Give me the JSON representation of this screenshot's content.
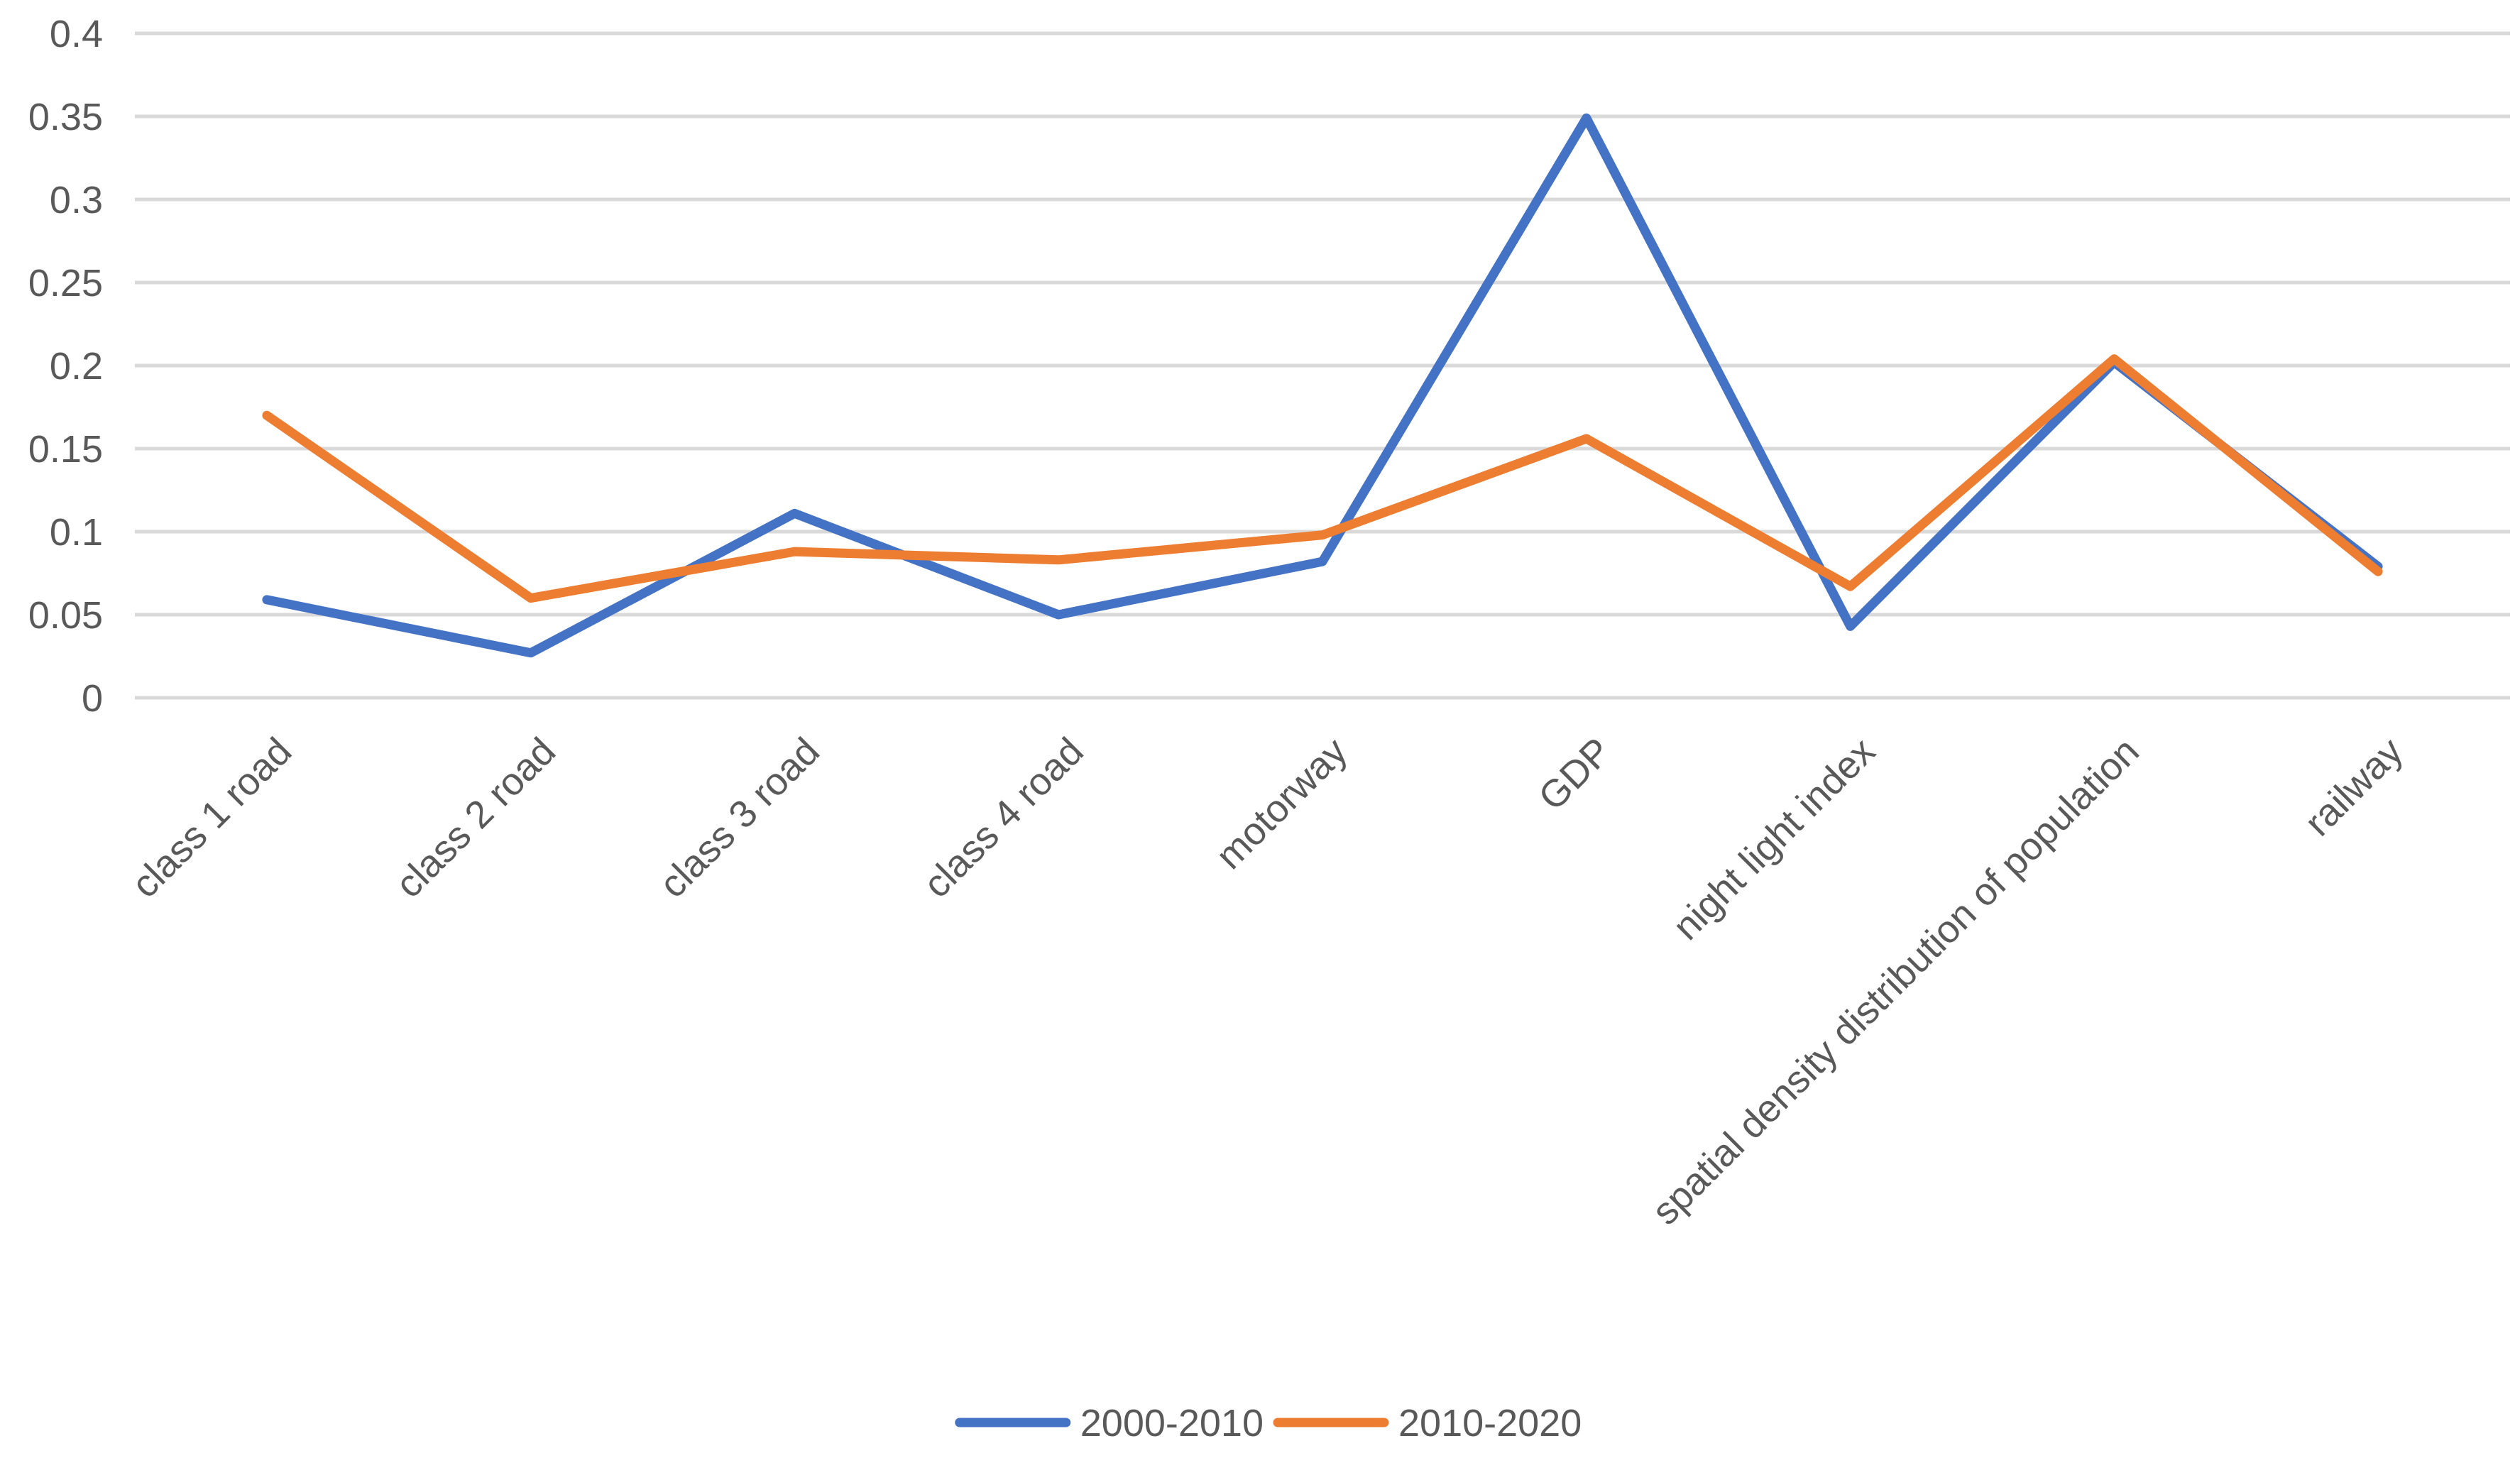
{
  "chart_data": {
    "type": "line",
    "categories": [
      "class 1 road",
      "class 2 road",
      "class 3 road",
      "class 4 road",
      "motorway",
      "GDP",
      "night light index",
      "spatial density distribution of population",
      "railway"
    ],
    "series": [
      {
        "name": "2000-2010",
        "color": "#4472c4",
        "values": [
          0.059,
          0.027,
          0.111,
          0.05,
          0.082,
          0.349,
          0.043,
          0.202,
          0.079
        ]
      },
      {
        "name": "2010-2020",
        "color": "#ed7d31",
        "values": [
          0.17,
          0.06,
          0.088,
          0.083,
          0.098,
          0.156,
          0.067,
          0.204,
          0.076
        ]
      }
    ],
    "y_ticks": [
      "0",
      "0.05",
      "0.1",
      "0.15",
      "0.2",
      "0.25",
      "0.3",
      "0.35",
      "0.4"
    ],
    "ylim": [
      0,
      0.4
    ],
    "grid": true,
    "legend": "bottom-center",
    "title": "",
    "xlabel": "",
    "ylabel": ""
  }
}
